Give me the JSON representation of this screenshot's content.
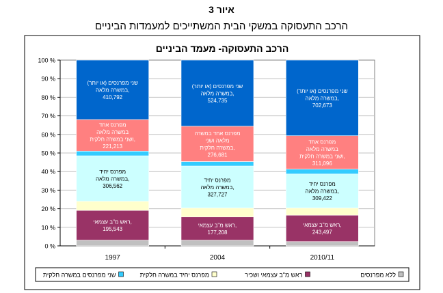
{
  "figure": {
    "label": "איור 3",
    "title": "הרכב התעסוקה במשקי הבית המשתייכים למעמדות הביניים"
  },
  "chart_data": {
    "type": "bar",
    "stacked": true,
    "title": "הרכב התעסוקה- מעמד הביניים",
    "xlabel": "",
    "ylabel": "",
    "ylim": [
      0,
      100
    ],
    "y_ticks": [
      "0 %",
      "10 %",
      "20 %",
      "30 %",
      "40 %",
      "50 %",
      "60 %",
      "70 %",
      "80 %",
      "90 %",
      "100 %"
    ],
    "categories": [
      "1997",
      "2004",
      "2010/11"
    ],
    "grid": true,
    "legend_position": "bottom",
    "series": [
      {
        "name": "ללא מפרנסים",
        "color": "#c0c0c0",
        "values": [
          3.1,
          3.1,
          2.3
        ],
        "labels": [
          "",
          "",
          ""
        ]
      },
      {
        "name": "ראש מ\"ב עצמאי ושכיר",
        "color": "#993366",
        "values": [
          16.0,
          12.5,
          14.2
        ],
        "labels": [
          "ראש מ\"ב עצמאי,\n195,543",
          "ראש מ\"ב עצמאי,\n177,208",
          "ראש מ\"ב עצמאי,\n243,497"
        ]
      },
      {
        "name": "מפרנס יחיד במשרה חלקית",
        "color": "#ffffcc",
        "values": [
          4.9,
          4.8,
          3.9
        ],
        "labels": [
          "",
          "",
          ""
        ]
      },
      {
        "name": "",
        "color": "#ccffff",
        "values": [
          24.5,
          22.6,
          18.3
        ],
        "labels": [
          "מפרנס יחיד\nבמשרה מלאה,\n306,562",
          "מפרנס יחיד\nבמשרה מלאה,\n327,727",
          "מפרנס יחיד\nבמשרה מלאה,\n309,422"
        ]
      },
      {
        "name": "שני מפרנסים במשרה חלקית",
        "color": "#33ccff",
        "values": [
          2.5,
          2.4,
          2.6
        ],
        "labels": [
          "",
          "",
          ""
        ]
      },
      {
        "name": "",
        "color": "#ff8080",
        "values": [
          17.0,
          19.0,
          18.0
        ],
        "labels": [
          "מפרנס אחד\nבמשרה מלאה\nושני במשרה חלקית,\n221,213",
          "מפרנס אחד במשרה\nמלאה ושני\nבמשרה חלקית,\n276,681",
          "מפרנס אחד\nבמשרה מלאה\nושני במשרה חלקית,\n311,096"
        ]
      },
      {
        "name": "",
        "color": "#0066cc",
        "values": [
          32.0,
          35.6,
          40.7
        ],
        "labels": [
          "שני מפרנסים (או יותר)\nבמשרה מלאה,\n410,792",
          "שני מפרנסים (או יותר)\nבמשרה מלאה,\n524,735",
          "שני מפרנסים (או יותר)\nבמשרה מלאה,\n702,673"
        ]
      }
    ]
  }
}
